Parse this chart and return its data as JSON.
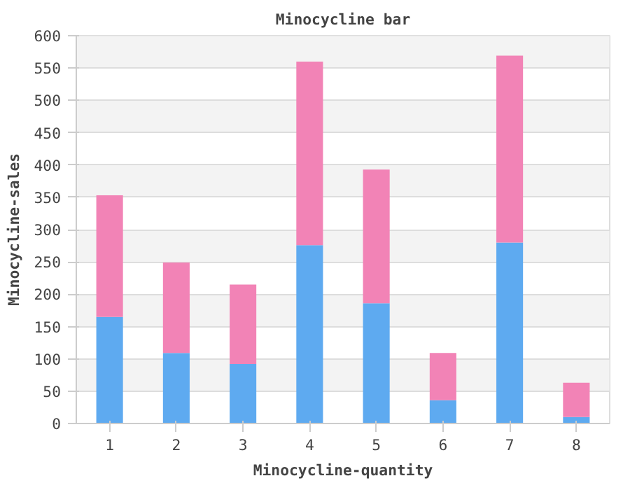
{
  "chart_data": {
    "type": "bar",
    "title": "Minocycline bar",
    "xlabel": "Minocycline-quantity",
    "ylabel": "Minocycline-sales",
    "categories": [
      "1",
      "2",
      "3",
      "4",
      "5",
      "6",
      "7",
      "8"
    ],
    "stacked": true,
    "series": [
      {
        "color": "#5eaaf0",
        "values": [
          165,
          109,
          92,
          276,
          186,
          36,
          280,
          10
        ]
      },
      {
        "color": "#f283b6",
        "values": [
          188,
          140,
          123,
          284,
          207,
          73,
          289,
          53
        ]
      }
    ],
    "ylim": [
      0,
      600
    ],
    "yticks": [
      0,
      50,
      100,
      150,
      200,
      250,
      300,
      350,
      400,
      450,
      500,
      550,
      600
    ],
    "grid": "y"
  }
}
